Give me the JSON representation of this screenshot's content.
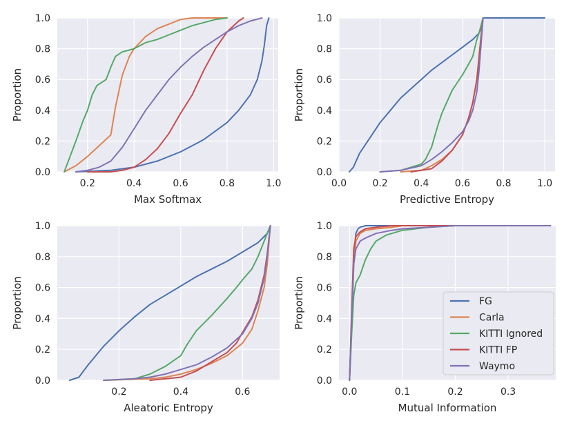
{
  "chart_data": [
    {
      "type": "line",
      "xlabel": "Max Softmax",
      "ylabel": "Proportion",
      "xlim": [
        0.07,
        1.02
      ],
      "ylim": [
        0,
        1.0
      ],
      "xticks": [
        "0.2",
        "0.4",
        "0.6",
        "0.8",
        "1.0"
      ],
      "xtick_values": [
        0.2,
        0.4,
        0.6,
        0.8,
        1.0
      ],
      "yticks": [
        "0.0",
        "0.2",
        "0.4",
        "0.6",
        "0.8",
        "1.0"
      ],
      "ytick_values": [
        0.0,
        0.2,
        0.4,
        0.6,
        0.8,
        1.0
      ],
      "series": [
        {
          "name": "FG",
          "x": [
            0.15,
            0.3,
            0.4,
            0.5,
            0.6,
            0.7,
            0.8,
            0.85,
            0.9,
            0.93,
            0.95,
            0.96,
            0.97,
            0.98
          ],
          "y": [
            0.0,
            0.01,
            0.03,
            0.07,
            0.13,
            0.21,
            0.32,
            0.4,
            0.5,
            0.6,
            0.72,
            0.82,
            0.95,
            1.0
          ]
        },
        {
          "name": "Carla",
          "x": [
            0.1,
            0.15,
            0.2,
            0.25,
            0.3,
            0.32,
            0.35,
            0.38,
            0.4,
            0.45,
            0.5,
            0.55,
            0.6,
            0.65,
            0.7,
            0.8
          ],
          "y": [
            0.0,
            0.04,
            0.1,
            0.17,
            0.24,
            0.42,
            0.63,
            0.75,
            0.8,
            0.88,
            0.93,
            0.96,
            0.99,
            1.0,
            1.0,
            1.0
          ]
        },
        {
          "name": "KITTI Ignored",
          "x": [
            0.1,
            0.12,
            0.15,
            0.18,
            0.2,
            0.22,
            0.24,
            0.28,
            0.3,
            0.32,
            0.35,
            0.4,
            0.45,
            0.5,
            0.55,
            0.6,
            0.65,
            0.7,
            0.75,
            0.8
          ],
          "y": [
            0.0,
            0.08,
            0.2,
            0.33,
            0.4,
            0.5,
            0.56,
            0.6,
            0.68,
            0.75,
            0.78,
            0.8,
            0.84,
            0.86,
            0.89,
            0.92,
            0.95,
            0.97,
            0.99,
            1.0
          ]
        },
        {
          "name": "KITTI FP",
          "x": [
            0.2,
            0.3,
            0.35,
            0.4,
            0.45,
            0.5,
            0.55,
            0.6,
            0.65,
            0.7,
            0.75,
            0.8,
            0.85,
            0.87
          ],
          "y": [
            0.0,
            0.0,
            0.01,
            0.03,
            0.08,
            0.15,
            0.25,
            0.38,
            0.5,
            0.66,
            0.8,
            0.91,
            0.98,
            1.0
          ]
        },
        {
          "name": "Waymo",
          "x": [
            0.15,
            0.2,
            0.25,
            0.3,
            0.35,
            0.4,
            0.45,
            0.5,
            0.55,
            0.6,
            0.65,
            0.7,
            0.75,
            0.8,
            0.85,
            0.9,
            0.95
          ],
          "y": [
            0.0,
            0.01,
            0.03,
            0.07,
            0.16,
            0.28,
            0.4,
            0.5,
            0.6,
            0.68,
            0.75,
            0.81,
            0.86,
            0.91,
            0.95,
            0.98,
            1.0
          ]
        }
      ]
    },
    {
      "type": "line",
      "xlabel": "Predictive Entropy",
      "ylabel": "Proportion",
      "xlim": [
        0.0,
        1.05
      ],
      "ylim": [
        0,
        1.0
      ],
      "xticks": [
        "0.0",
        "0.2",
        "0.4",
        "0.6",
        "0.8",
        "1.0"
      ],
      "xtick_values": [
        0.0,
        0.2,
        0.4,
        0.6,
        0.8,
        1.0
      ],
      "yticks": [
        "0.0",
        "0.2",
        "0.4",
        "0.6",
        "0.8",
        "1.0"
      ],
      "ytick_values": [
        0.0,
        0.2,
        0.4,
        0.6,
        0.8,
        1.0
      ],
      "series": [
        {
          "name": "FG",
          "x": [
            0.05,
            0.07,
            0.1,
            0.15,
            0.2,
            0.25,
            0.3,
            0.35,
            0.4,
            0.45,
            0.5,
            0.55,
            0.6,
            0.65,
            0.68,
            0.69,
            0.7,
            1.0
          ],
          "y": [
            0.0,
            0.03,
            0.12,
            0.22,
            0.32,
            0.4,
            0.48,
            0.54,
            0.6,
            0.66,
            0.71,
            0.76,
            0.81,
            0.86,
            0.9,
            0.93,
            1.0,
            1.0
          ]
        },
        {
          "name": "Carla",
          "x": [
            0.3,
            0.4,
            0.45,
            0.5,
            0.55,
            0.6,
            0.63,
            0.65,
            0.67,
            0.68,
            0.69,
            0.7
          ],
          "y": [
            0.0,
            0.01,
            0.04,
            0.08,
            0.14,
            0.24,
            0.35,
            0.45,
            0.6,
            0.75,
            0.88,
            1.0
          ]
        },
        {
          "name": "KITTI Ignored",
          "x": [
            0.2,
            0.3,
            0.35,
            0.4,
            0.42,
            0.45,
            0.48,
            0.5,
            0.55,
            0.6,
            0.63,
            0.65,
            0.67,
            0.68,
            0.69,
            0.7
          ],
          "y": [
            0.0,
            0.01,
            0.03,
            0.05,
            0.08,
            0.16,
            0.3,
            0.38,
            0.53,
            0.63,
            0.7,
            0.75,
            0.86,
            0.9,
            0.95,
            1.0
          ]
        },
        {
          "name": "KITTI FP",
          "x": [
            0.35,
            0.45,
            0.5,
            0.55,
            0.6,
            0.63,
            0.65,
            0.67,
            0.68,
            0.69,
            0.7
          ],
          "y": [
            0.0,
            0.02,
            0.07,
            0.14,
            0.24,
            0.35,
            0.45,
            0.6,
            0.72,
            0.87,
            1.0
          ]
        },
        {
          "name": "Waymo",
          "x": [
            0.2,
            0.3,
            0.4,
            0.45,
            0.5,
            0.55,
            0.6,
            0.63,
            0.65,
            0.67,
            0.68,
            0.69,
            0.7
          ],
          "y": [
            0.0,
            0.01,
            0.04,
            0.08,
            0.13,
            0.19,
            0.26,
            0.33,
            0.4,
            0.52,
            0.65,
            0.82,
            1.0
          ]
        }
      ]
    },
    {
      "type": "line",
      "xlabel": "Aleatoric Entropy",
      "ylabel": "Proportion",
      "xlim": [
        0.0,
        0.72
      ],
      "ylim": [
        0,
        1.0
      ],
      "xticks": [
        "0.2",
        "0.4",
        "0.6"
      ],
      "xtick_values": [
        0.2,
        0.4,
        0.6
      ],
      "yticks": [
        "0.0",
        "0.2",
        "0.4",
        "0.6",
        "0.8",
        "1.0"
      ],
      "ytick_values": [
        0.0,
        0.2,
        0.4,
        0.6,
        0.8,
        1.0
      ],
      "series": [
        {
          "name": "FG",
          "x": [
            0.04,
            0.07,
            0.1,
            0.15,
            0.2,
            0.25,
            0.3,
            0.35,
            0.4,
            0.45,
            0.5,
            0.55,
            0.6,
            0.65,
            0.68,
            0.69
          ],
          "y": [
            0.0,
            0.02,
            0.1,
            0.22,
            0.32,
            0.41,
            0.49,
            0.55,
            0.61,
            0.67,
            0.72,
            0.77,
            0.83,
            0.89,
            0.95,
            1.0
          ]
        },
        {
          "name": "Carla",
          "x": [
            0.15,
            0.3,
            0.35,
            0.4,
            0.45,
            0.5,
            0.55,
            0.6,
            0.63,
            0.65,
            0.67,
            0.68,
            0.69
          ],
          "y": [
            0.0,
            0.01,
            0.02,
            0.04,
            0.07,
            0.11,
            0.16,
            0.24,
            0.33,
            0.45,
            0.6,
            0.75,
            1.0
          ]
        },
        {
          "name": "KITTI Ignored",
          "x": [
            0.15,
            0.25,
            0.3,
            0.35,
            0.4,
            0.42,
            0.45,
            0.5,
            0.55,
            0.58,
            0.6,
            0.63,
            0.65,
            0.67,
            0.69
          ],
          "y": [
            0.0,
            0.01,
            0.04,
            0.09,
            0.16,
            0.23,
            0.32,
            0.42,
            0.53,
            0.6,
            0.65,
            0.72,
            0.8,
            0.9,
            1.0
          ]
        },
        {
          "name": "KITTI FP",
          "x": [
            0.3,
            0.4,
            0.45,
            0.5,
            0.55,
            0.58,
            0.6,
            0.63,
            0.65,
            0.67,
            0.68,
            0.69
          ],
          "y": [
            0.0,
            0.02,
            0.06,
            0.12,
            0.18,
            0.24,
            0.31,
            0.41,
            0.52,
            0.68,
            0.82,
            1.0
          ]
        },
        {
          "name": "Waymo",
          "x": [
            0.15,
            0.25,
            0.3,
            0.35,
            0.4,
            0.45,
            0.5,
            0.55,
            0.6,
            0.63,
            0.65,
            0.67,
            0.68,
            0.69
          ],
          "y": [
            0.0,
            0.01,
            0.02,
            0.04,
            0.07,
            0.1,
            0.15,
            0.21,
            0.3,
            0.4,
            0.5,
            0.66,
            0.8,
            1.0
          ]
        }
      ]
    },
    {
      "type": "line",
      "xlabel": "Mutual Information",
      "ylabel": "Proportion",
      "xlim": [
        -0.02,
        0.39
      ],
      "ylim": [
        0,
        1.0
      ],
      "xticks": [
        "0.0",
        "0.1",
        "0.2",
        "0.3"
      ],
      "xtick_values": [
        0.0,
        0.1,
        0.2,
        0.3
      ],
      "yticks": [
        "0.0",
        "0.2",
        "0.4",
        "0.6",
        "0.8",
        "1.0"
      ],
      "ytick_values": [
        0.0,
        0.2,
        0.4,
        0.6,
        0.8,
        1.0
      ],
      "series": [
        {
          "name": "FG",
          "x": [
            0.0,
            0.004,
            0.008,
            0.012,
            0.016,
            0.02,
            0.03,
            0.05,
            0.38
          ],
          "y": [
            0.0,
            0.4,
            0.8,
            0.95,
            0.98,
            0.99,
            1.0,
            1.0,
            1.0
          ]
        },
        {
          "name": "Carla",
          "x": [
            0.0,
            0.004,
            0.008,
            0.012,
            0.02,
            0.03,
            0.05,
            0.08,
            0.1,
            0.38
          ],
          "y": [
            0.0,
            0.35,
            0.75,
            0.9,
            0.95,
            0.97,
            0.98,
            0.99,
            1.0,
            1.0
          ]
        },
        {
          "name": "KITTI Ignored",
          "x": [
            0.0,
            0.004,
            0.008,
            0.012,
            0.02,
            0.03,
            0.04,
            0.05,
            0.07,
            0.1,
            0.15,
            0.2,
            0.38
          ],
          "y": [
            0.0,
            0.3,
            0.55,
            0.63,
            0.68,
            0.78,
            0.85,
            0.9,
            0.94,
            0.97,
            0.99,
            1.0,
            1.0
          ]
        },
        {
          "name": "KITTI FP",
          "x": [
            0.0,
            0.004,
            0.008,
            0.012,
            0.02,
            0.03,
            0.05,
            0.08,
            0.1,
            0.38
          ],
          "y": [
            0.0,
            0.45,
            0.85,
            0.93,
            0.96,
            0.98,
            0.99,
            1.0,
            1.0,
            1.0
          ]
        },
        {
          "name": "Waymo",
          "x": [
            0.0,
            0.004,
            0.008,
            0.012,
            0.02,
            0.03,
            0.05,
            0.08,
            0.1,
            0.15,
            0.2,
            0.38
          ],
          "y": [
            0.0,
            0.4,
            0.75,
            0.85,
            0.9,
            0.92,
            0.95,
            0.97,
            0.98,
            0.99,
            1.0,
            1.0
          ]
        }
      ]
    }
  ],
  "legend": {
    "location": "lower-right",
    "entries": [
      "FG",
      "Carla",
      "KITTI Ignored",
      "KITTI FP",
      "Waymo"
    ]
  },
  "colors": {
    "FG": "#4c72b0",
    "Carla": "#dd8452",
    "KITTI Ignored": "#55a868",
    "KITTI FP": "#c44e52",
    "Waymo": "#8172b3",
    "panel_bg": "#eaeaf2",
    "grid": "#ffffff"
  }
}
